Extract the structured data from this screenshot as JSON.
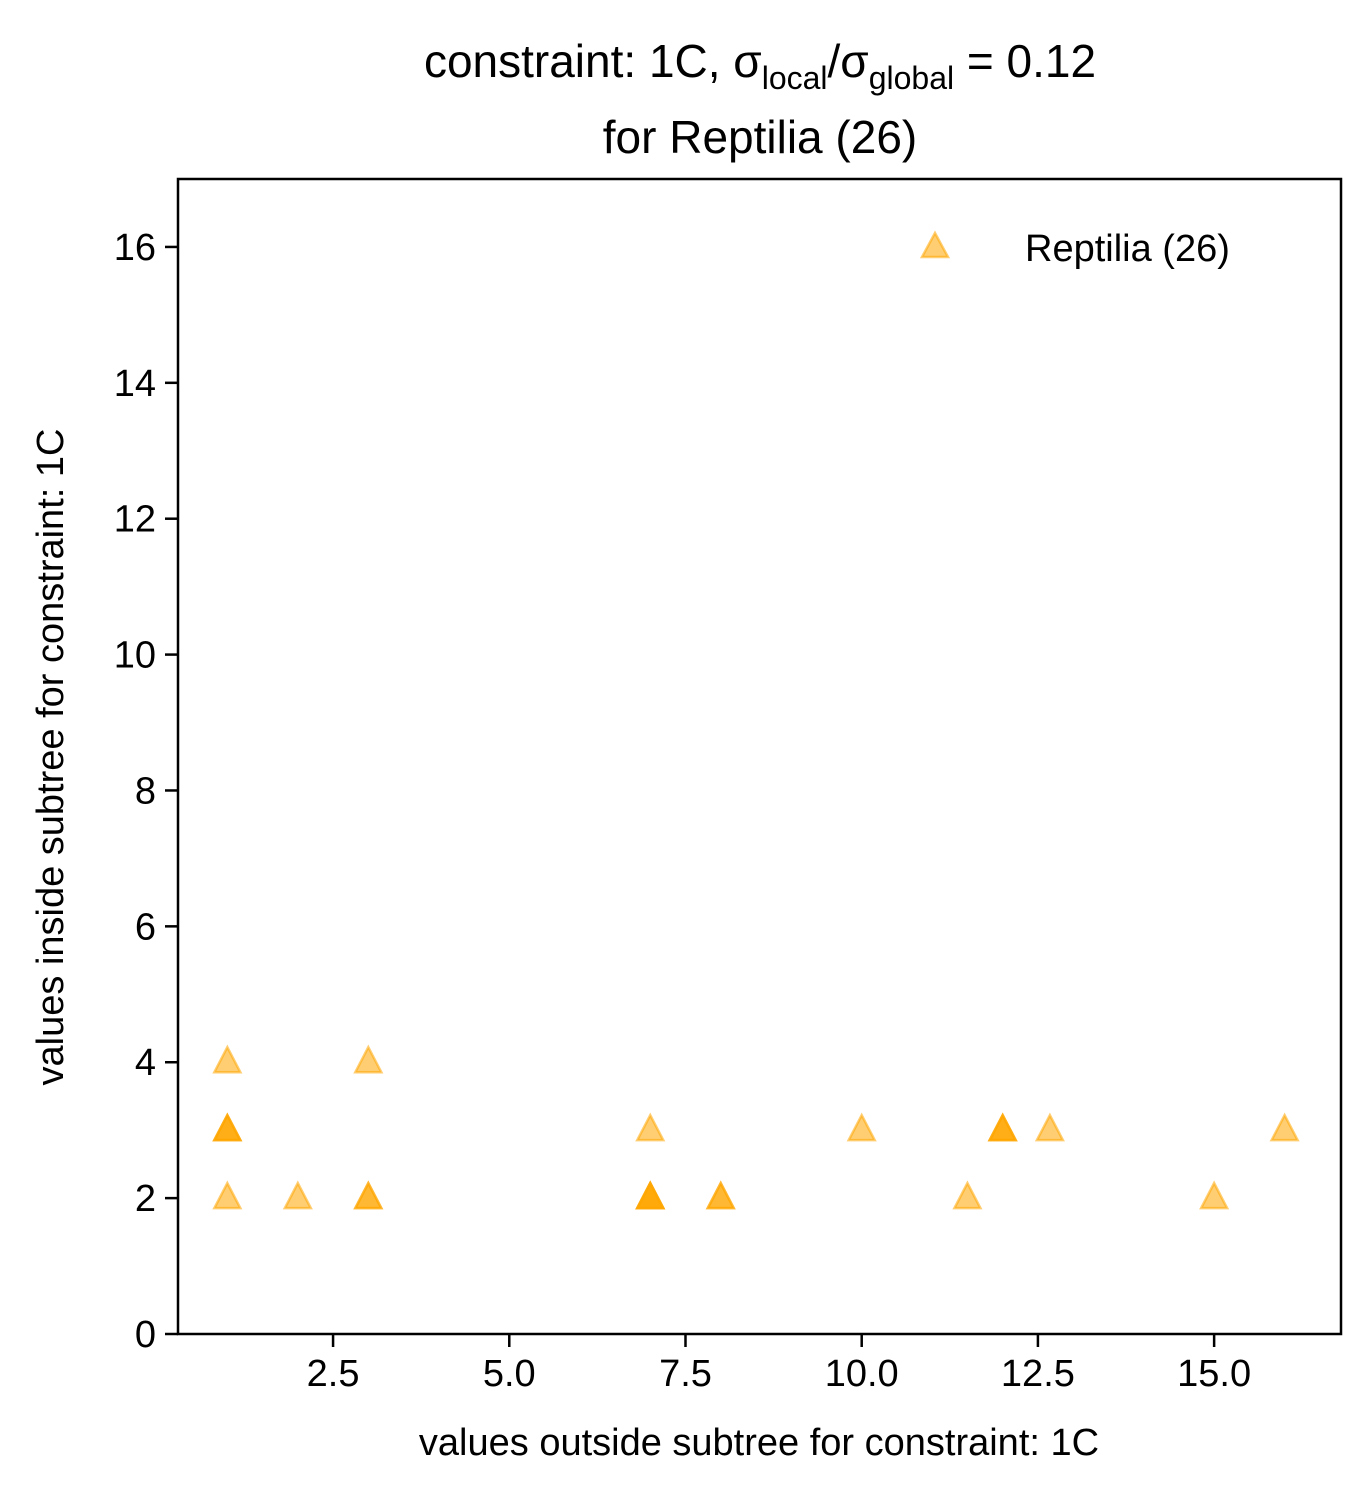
{
  "chart_data": {
    "type": "scatter",
    "title": {
      "prefix": "constraint: 1C, σ",
      "sub1": "local",
      "mid": "/σ",
      "sub2": "global",
      "suffix": " =  0.12",
      "line2": "for Reptilia (26)"
    },
    "xlabel": "values outside subtree for constraint: 1C",
    "ylabel": "values inside subtree for constraint: 1C",
    "xlim": [
      0.3,
      16.8
    ],
    "ylim": [
      0,
      17
    ],
    "xticks": [
      2.5,
      5.0,
      7.5,
      10.0,
      12.5,
      15.0
    ],
    "xtick_labels": [
      "2.5",
      "5.0",
      "7.5",
      "10.0",
      "12.5",
      "15.0"
    ],
    "yticks": [
      0,
      2,
      4,
      6,
      8,
      10,
      12,
      14,
      16
    ],
    "ytick_labels": [
      "0",
      "2",
      "4",
      "6",
      "8",
      "10",
      "12",
      "14",
      "16"
    ],
    "legend_position": "top-right",
    "series": [
      {
        "name": "Reptilia (26)",
        "color": "#FFA500",
        "marker": "triangle",
        "alpha": 0.55,
        "points": [
          {
            "x": 1,
            "y": 4
          },
          {
            "x": 3,
            "y": 4
          },
          {
            "x": 1,
            "y": 3
          },
          {
            "x": 1,
            "y": 3
          },
          {
            "x": 1,
            "y": 3
          },
          {
            "x": 7,
            "y": 3
          },
          {
            "x": 10,
            "y": 3
          },
          {
            "x": 12,
            "y": 3
          },
          {
            "x": 12,
            "y": 3
          },
          {
            "x": 12,
            "y": 3
          },
          {
            "x": 12.67,
            "y": 3
          },
          {
            "x": 16,
            "y": 3
          },
          {
            "x": 1,
            "y": 2
          },
          {
            "x": 2,
            "y": 2
          },
          {
            "x": 3,
            "y": 2
          },
          {
            "x": 3,
            "y": 2
          },
          {
            "x": 7,
            "y": 2
          },
          {
            "x": 7,
            "y": 2
          },
          {
            "x": 7,
            "y": 2
          },
          {
            "x": 7,
            "y": 2
          },
          {
            "x": 8,
            "y": 2
          },
          {
            "x": 8,
            "y": 2
          },
          {
            "x": 11.5,
            "y": 2
          },
          {
            "x": 15,
            "y": 2
          }
        ]
      }
    ]
  }
}
